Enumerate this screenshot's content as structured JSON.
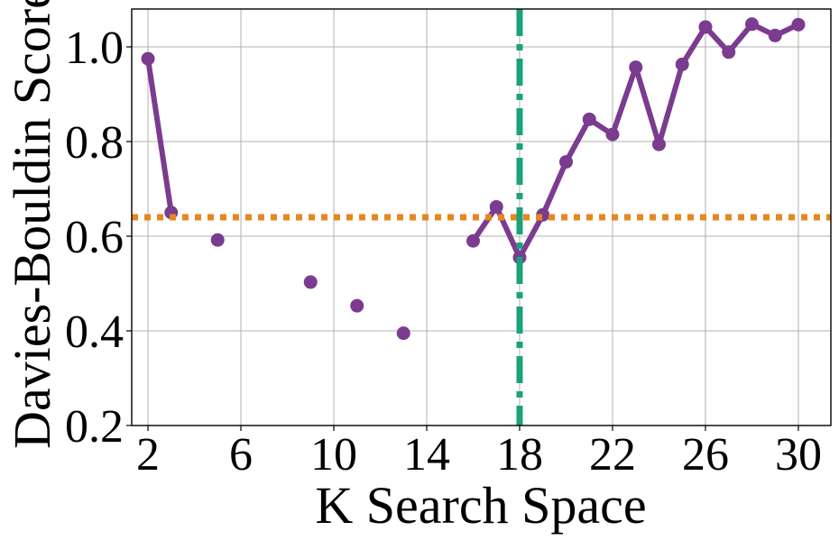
{
  "chart_data": {
    "type": "line",
    "title": "",
    "xlabel": "K Search Space",
    "ylabel": "Davies-Bouldin Score",
    "xlim": [
      1.3,
      31.4
    ],
    "ylim": [
      0.2,
      1.08
    ],
    "xticks": [
      2,
      6,
      10,
      14,
      18,
      22,
      26,
      30
    ],
    "xtick_labels": [
      "2",
      "6",
      "10",
      "14",
      "18",
      "22",
      "26",
      "30"
    ],
    "yticks": [
      0.2,
      0.4,
      0.6,
      0.8,
      1.0
    ],
    "ytick_labels": [
      "0.2",
      "0.4",
      "0.6",
      "0.8",
      "1.0"
    ],
    "grid": true,
    "series": [
      {
        "color": "#7b3b8f",
        "points": [
          {
            "x": 2,
            "y": 0.975
          },
          {
            "x": 3,
            "y": 0.65
          },
          {
            "x": 5,
            "y": 0.592
          },
          {
            "x": 9,
            "y": 0.503
          },
          {
            "x": 11,
            "y": 0.453
          },
          {
            "x": 13,
            "y": 0.395
          },
          {
            "x": 16,
            "y": 0.59
          },
          {
            "x": 17,
            "y": 0.662
          },
          {
            "x": 18,
            "y": 0.555
          },
          {
            "x": 19,
            "y": 0.645
          },
          {
            "x": 20,
            "y": 0.757
          },
          {
            "x": 21,
            "y": 0.847
          },
          {
            "x": 22,
            "y": 0.815
          },
          {
            "x": 23,
            "y": 0.957
          },
          {
            "x": 24,
            "y": 0.794
          },
          {
            "x": 25,
            "y": 0.963
          },
          {
            "x": 26,
            "y": 1.042
          },
          {
            "x": 27,
            "y": 0.989
          },
          {
            "x": 28,
            "y": 1.048
          },
          {
            "x": 29,
            "y": 1.024
          },
          {
            "x": 30,
            "y": 1.047
          }
        ],
        "segments": [
          [
            0,
            1
          ],
          [
            6,
            20
          ]
        ]
      }
    ],
    "reference_lines": [
      {
        "orientation": "horizontal",
        "value": 0.64,
        "color": "#e6871f",
        "style": "dotted"
      },
      {
        "orientation": "vertical",
        "value": 18,
        "color": "#1aa37a",
        "style": "dashdot"
      }
    ]
  }
}
